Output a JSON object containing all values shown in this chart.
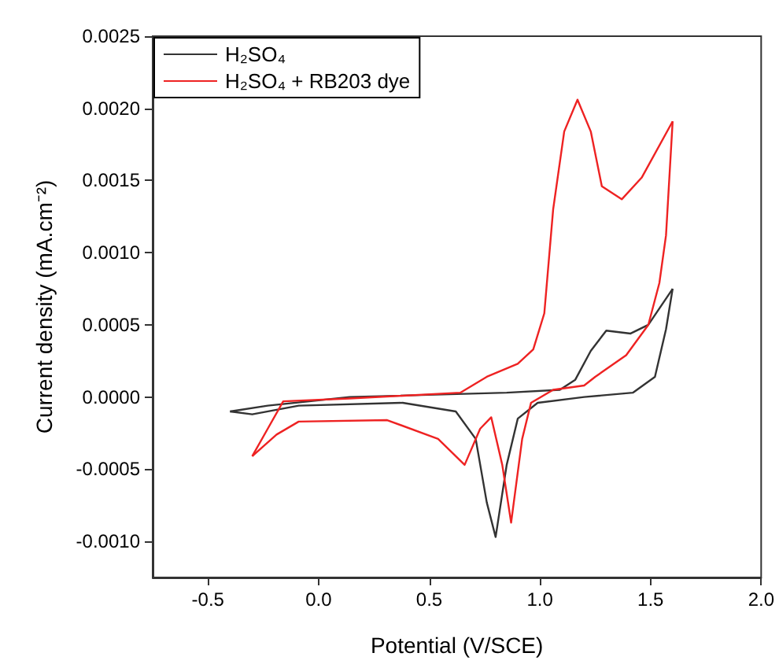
{
  "chart_data": {
    "type": "line",
    "xlabel": "Potential (V/SCE)",
    "ylabel": "Current density (mA.cm⁻²)",
    "xlim": [
      -0.75,
      2.0
    ],
    "xticks": [
      {
        "value": -0.5,
        "label": "-0.5"
      },
      {
        "value": 0,
        "label": "0.0"
      },
      {
        "value": 0.5,
        "label": "0.5"
      },
      {
        "value": 1,
        "label": "1.0"
      },
      {
        "value": 1.5,
        "label": "1.5"
      },
      {
        "value": 2,
        "label": "2.0"
      }
    ],
    "ylim": [
      -0.00125,
      0.0025
    ],
    "yticks": [
      {
        "value": -0.001,
        "label": "-0.0010"
      },
      {
        "value": -0.0005,
        "label": "-0.0005"
      },
      {
        "value": 0,
        "label": "0.0000"
      },
      {
        "value": 0.0005,
        "label": "0.0005"
      },
      {
        "value": 0.001,
        "label": "0.0010"
      },
      {
        "value": 0.0015,
        "label": "0.0015"
      },
      {
        "value": 0.002,
        "label": "0.0020"
      },
      {
        "value": 0.0025,
        "label": "0.0025"
      }
    ],
    "grid": false,
    "legend": "top left",
    "marker": "none",
    "series": [
      {
        "name": "H₂SO₄",
        "color": "#333333",
        "x": [
          -0.4,
          -0.23,
          0.14,
          0.85,
          1.09,
          1.16,
          1.23,
          1.3,
          1.41,
          1.49,
          1.6
        ],
        "values": [
          -0.0001,
          -6e-05,
          0.0,
          3e-05,
          5e-05,
          0.00012,
          0.00032,
          0.00046,
          0.00044,
          0.0005,
          0.00075
        ]
      },
      {
        "color": "#333333",
        "x": [
          1.6,
          1.57,
          1.52,
          1.42,
          1.2,
          0.99,
          0.9,
          0.85,
          0.8,
          0.76,
          0.71,
          0.62,
          0.38,
          -0.09,
          -0.3,
          -0.4
        ],
        "values": [
          0.00075,
          0.00047,
          0.00014,
          3e-05,
          0.0,
          -4e-05,
          -0.00015,
          -0.00047,
          -0.00097,
          -0.00073,
          -0.00029,
          -0.0001,
          -4e-05,
          -6e-05,
          -0.00012,
          -0.0001
        ]
      },
      {
        "name": "H₂SO₄ + RB203 dye",
        "color": "#ee2222",
        "x": [
          -0.3,
          -0.23,
          -0.16,
          0.14,
          0.64,
          0.76,
          0.9,
          0.97,
          1.02,
          1.06,
          1.11,
          1.17,
          1.23,
          1.28,
          1.37,
          1.46,
          1.6
        ],
        "values": [
          -0.00041,
          -0.00022,
          -3e-05,
          -1e-05,
          3e-05,
          0.00014,
          0.00023,
          0.00033,
          0.00058,
          0.0013,
          0.00184,
          0.00206,
          0.00184,
          0.00146,
          0.00137,
          0.00152,
          0.00191
        ]
      },
      {
        "color": "#ee2222",
        "x": [
          1.6,
          1.57,
          1.54,
          1.49,
          1.39,
          1.25,
          1.2,
          1.06,
          0.96,
          0.92,
          0.87,
          0.83,
          0.78,
          0.73,
          0.66,
          0.54,
          0.31,
          -0.09,
          -0.19,
          -0.3
        ],
        "values": [
          0.00191,
          0.00112,
          0.00079,
          0.0005,
          0.00029,
          0.00014,
          8e-05,
          5e-05,
          -4e-05,
          -0.00029,
          -0.00087,
          -0.00047,
          -0.00014,
          -0.00022,
          -0.00047,
          -0.00029,
          -0.00016,
          -0.00017,
          -0.00026,
          -0.00041
        ]
      }
    ]
  }
}
